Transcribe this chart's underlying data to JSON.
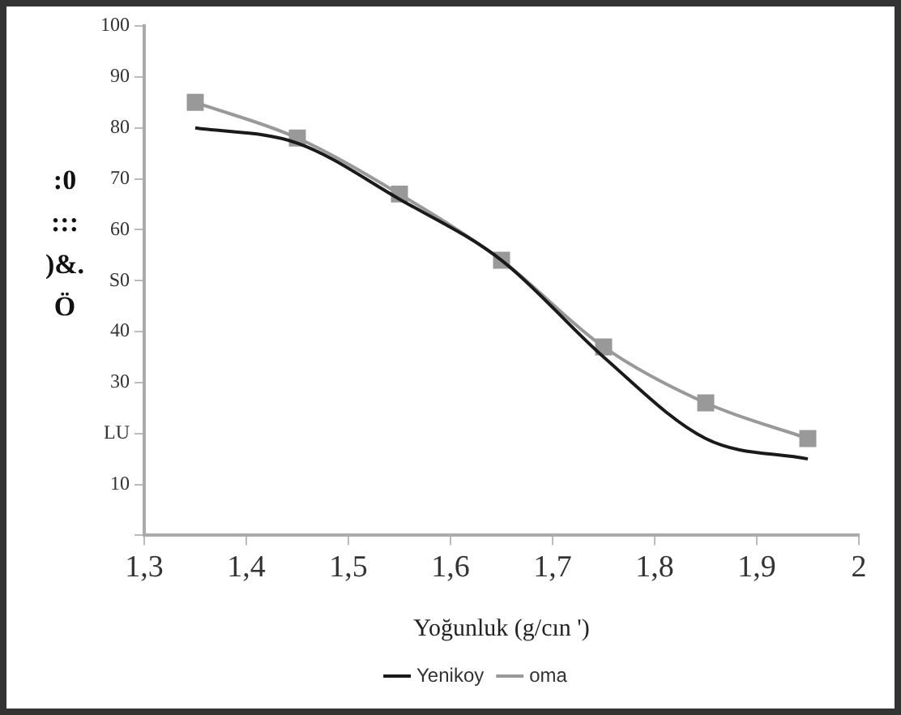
{
  "chart_data": {
    "type": "line",
    "xlabel": "Yoğunluk (g/cın ')",
    "ylabel": ":0 ::: )&. Ö",
    "x": [
      1.35,
      1.45,
      1.55,
      1.65,
      1.75,
      1.85,
      1.95
    ],
    "series": [
      {
        "name": "Yenikoy",
        "color": "#1a1a1a",
        "values": [
          80,
          77,
          66,
          54,
          35,
          19,
          15
        ],
        "marker": "none"
      },
      {
        "name": "oma",
        "color": "#999999",
        "values": [
          85,
          78,
          67,
          54,
          37,
          26,
          19
        ],
        "marker": "square"
      }
    ],
    "xlim": [
      1.3,
      2
    ],
    "xticks": [
      {
        "value": 1.3,
        "label": "1,3"
      },
      {
        "value": 1.4,
        "label": "1,4"
      },
      {
        "value": 1.5,
        "label": "1,5"
      },
      {
        "value": 1.6,
        "label": "1,6"
      },
      {
        "value": 1.7,
        "label": "1,7"
      },
      {
        "value": 1.8,
        "label": "1,8"
      },
      {
        "value": 1.9,
        "label": "1,9"
      },
      2
    ],
    "ylim": [
      0,
      100
    ],
    "yticks": [
      {
        "value": 0,
        "label": null
      },
      10,
      {
        "value": 20,
        "label": "LU"
      },
      30,
      40,
      {
        "value": 50,
        "label": "S0"
      },
      60,
      70,
      80,
      90,
      100
    ],
    "grid": false,
    "legend": "bottom"
  }
}
